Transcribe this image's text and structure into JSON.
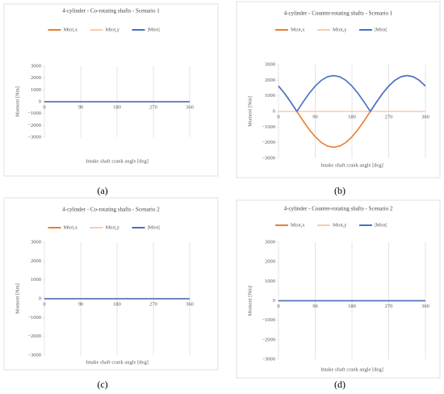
{
  "chart_data": [
    {
      "type": "line",
      "label": "(a)",
      "title": "4-cylinder - Co-rotating shafts - Scenario 1",
      "x_label": "Intake shaft crank angle [deg]",
      "y_label": "Moment [Nm]",
      "x": [
        0,
        360
      ],
      "series": [
        {
          "name": "Mtot,x",
          "color": "#ed7d31",
          "values": [
            0,
            0
          ]
        },
        {
          "name": "Mtot,y",
          "color": "#f8cbad",
          "values": [
            0,
            0
          ]
        },
        {
          "name": "|Mtot|",
          "color": "#4472c4",
          "values": [
            0,
            0
          ]
        }
      ],
      "xlim": [
        0,
        360
      ],
      "xticks": [
        0,
        90,
        180,
        270,
        360
      ],
      "ylim": [
        -3000,
        3000
      ],
      "yticks": [
        {
          "value": -3000,
          "label": "−3000"
        },
        {
          "value": -2000,
          "label": "−2000"
        },
        {
          "value": -1000,
          "label": "−1000"
        },
        0,
        1000,
        2000,
        3000
      ],
      "grid": "x",
      "legend": "top"
    },
    {
      "type": "line",
      "label": "(b)",
      "title": "4-cylinder - Counter-rotating shafts - Scenario 1",
      "x_label": "Intake shaft crank angle [deg]",
      "y_label": "Moment [Nm]",
      "x": [
        0,
        15,
        30,
        45,
        60,
        75,
        90,
        105,
        120,
        135,
        150,
        165,
        180,
        195,
        210,
        225,
        240,
        255,
        270,
        285,
        300,
        315,
        330,
        345,
        360
      ],
      "series": [
        {
          "name": "Mtot,x",
          "color": "#ed7d31",
          "values": [
            1626,
            1150,
            595,
            0,
            -595,
            -1150,
            -1626,
            -1992,
            -2222,
            -2300,
            -2222,
            -1992,
            -1626,
            -1150,
            -595,
            0,
            595,
            1150,
            1626,
            1992,
            2222,
            2300,
            2222,
            1992,
            1626
          ]
        },
        {
          "name": "Mtot,y",
          "color": "#f8cbad",
          "values": [
            0,
            0,
            0,
            0,
            0,
            0,
            0,
            0,
            0,
            0,
            0,
            0,
            0,
            0,
            0,
            0,
            0,
            0,
            0,
            0,
            0,
            0,
            0,
            0,
            0
          ]
        },
        {
          "name": "|Mtot|",
          "color": "#4472c4",
          "values": [
            1626,
            1150,
            595,
            0,
            595,
            1150,
            1626,
            1992,
            2222,
            2300,
            2222,
            1992,
            1626,
            1150,
            595,
            0,
            595,
            1150,
            1626,
            1992,
            2222,
            2300,
            2222,
            1992,
            1626
          ]
        }
      ],
      "xlim": [
        0,
        360
      ],
      "xticks": [
        0,
        90,
        180,
        270,
        360
      ],
      "ylim": [
        -3000,
        3000
      ],
      "yticks": [
        {
          "value": -3000,
          "label": "−3000"
        },
        {
          "value": -2000,
          "label": "−2000"
        },
        {
          "value": -1000,
          "label": "−1000"
        },
        0,
        1000,
        2000,
        3000
      ],
      "grid": "x",
      "legend": "top"
    },
    {
      "type": "line",
      "label": "(c)",
      "title": "4-cylinder - Co-rotating shafts - Scenario 2",
      "x_label": "Intake shaft crank angle [deg]",
      "y_label": "Moment [Nm]",
      "x": [
        0,
        360
      ],
      "series": [
        {
          "name": "Mtot,x",
          "color": "#ed7d31",
          "values": [
            0,
            0
          ]
        },
        {
          "name": "Mtot,y",
          "color": "#f8cbad",
          "values": [
            0,
            0
          ]
        },
        {
          "name": "|Mtot|",
          "color": "#4472c4",
          "values": [
            0,
            0
          ]
        }
      ],
      "xlim": [
        0,
        360
      ],
      "xticks": [
        0,
        90,
        180,
        270,
        360
      ],
      "ylim": [
        -3000,
        3000
      ],
      "yticks": [
        {
          "value": -3000,
          "label": "−3000"
        },
        {
          "value": -2000,
          "label": "−2000"
        },
        {
          "value": -1000,
          "label": "−1000"
        },
        0,
        1000,
        2000,
        3000
      ],
      "grid": "x",
      "legend": "top"
    },
    {
      "type": "line",
      "label": "(d)",
      "title": "4-cylinder - Counter-rotating shafts - Scenario 2",
      "x_label": "Intake shaft crank angle [deg]",
      "y_label": "Moment [Nm]",
      "x": [
        0,
        360
      ],
      "series": [
        {
          "name": "Mtot,x",
          "color": "#ed7d31",
          "values": [
            0,
            0
          ]
        },
        {
          "name": "Mtot,y",
          "color": "#f8cbad",
          "values": [
            0,
            0
          ]
        },
        {
          "name": "|Mtot|",
          "color": "#4472c4",
          "values": [
            0,
            0
          ]
        }
      ],
      "xlim": [
        0,
        360
      ],
      "xticks": [
        0,
        90,
        180,
        270,
        360
      ],
      "ylim": [
        -3000,
        3000
      ],
      "yticks": [
        {
          "value": -3000,
          "label": "−3000"
        },
        {
          "value": -2000,
          "label": "−2000"
        },
        {
          "value": -1000,
          "label": "−1000"
        },
        0,
        1000,
        2000,
        3000
      ],
      "grid": "x",
      "legend": "top"
    }
  ]
}
